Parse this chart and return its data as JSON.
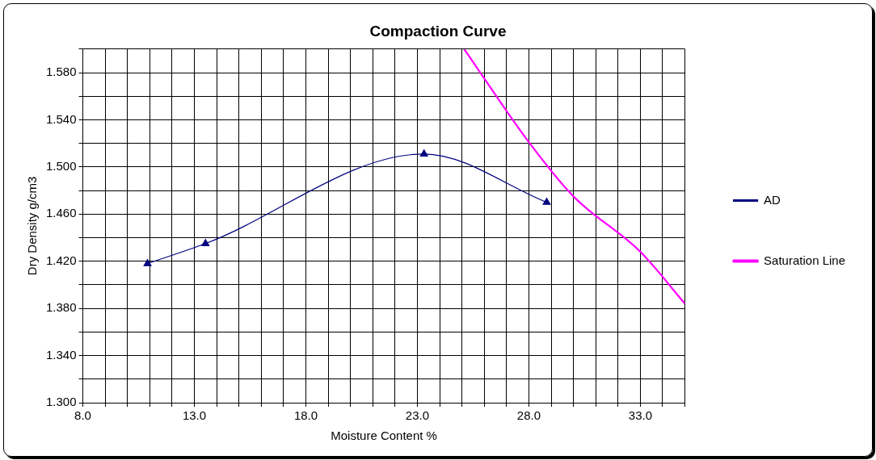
{
  "chart_data": {
    "type": "line",
    "title": "Compaction Curve",
    "xlabel": "Moisture Content %",
    "ylabel": "Dry Density g/cm3",
    "xlim": [
      8,
      35
    ],
    "ylim": [
      1.3,
      1.6
    ],
    "xticks": [
      {
        "value": 8,
        "label": "8.0"
      },
      {
        "value": 9,
        "label": null
      },
      {
        "value": 10,
        "label": null
      },
      {
        "value": 11,
        "label": null
      },
      {
        "value": 12,
        "label": null
      },
      {
        "value": 13,
        "label": "13.0"
      },
      {
        "value": 14,
        "label": null
      },
      {
        "value": 15,
        "label": null
      },
      {
        "value": 16,
        "label": null
      },
      {
        "value": 17,
        "label": null
      },
      {
        "value": 18,
        "label": "18.0"
      },
      {
        "value": 19,
        "label": null
      },
      {
        "value": 20,
        "label": null
      },
      {
        "value": 21,
        "label": null
      },
      {
        "value": 22,
        "label": null
      },
      {
        "value": 23,
        "label": "23.0"
      },
      {
        "value": 24,
        "label": null
      },
      {
        "value": 25,
        "label": null
      },
      {
        "value": 26,
        "label": null
      },
      {
        "value": 27,
        "label": null
      },
      {
        "value": 28,
        "label": "28.0"
      },
      {
        "value": 29,
        "label": null
      },
      {
        "value": 30,
        "label": null
      },
      {
        "value": 31,
        "label": null
      },
      {
        "value": 32,
        "label": null
      },
      {
        "value": 33,
        "label": "33.0"
      },
      {
        "value": 34,
        "label": null
      },
      {
        "value": 35,
        "label": null
      }
    ],
    "yticks": [
      {
        "value": 1.3,
        "label": "1.300"
      },
      {
        "value": 1.32,
        "label": null
      },
      {
        "value": 1.34,
        "label": "1.340"
      },
      {
        "value": 1.36,
        "label": null
      },
      {
        "value": 1.38,
        "label": "1.380"
      },
      {
        "value": 1.4,
        "label": null
      },
      {
        "value": 1.42,
        "label": "1.420"
      },
      {
        "value": 1.44,
        "label": null
      },
      {
        "value": 1.46,
        "label": "1.460"
      },
      {
        "value": 1.48,
        "label": null
      },
      {
        "value": 1.5,
        "label": "1.500"
      },
      {
        "value": 1.52,
        "label": null
      },
      {
        "value": 1.54,
        "label": "1.540"
      },
      {
        "value": 1.56,
        "label": null
      },
      {
        "value": 1.58,
        "label": "1.580"
      },
      {
        "value": 1.6,
        "label": null
      }
    ],
    "grid": true,
    "legend": "right",
    "series": [
      {
        "name": "AD",
        "color": "#000080",
        "marker": "triangle",
        "x": [
          10.9,
          13.5,
          23.3,
          28.8
        ],
        "values": [
          1.418,
          1.435,
          1.511,
          1.47
        ]
      },
      {
        "name": "Saturation Line",
        "color": "#ff00ff",
        "marker": "none",
        "x": [
          25.1,
          28,
          30,
          33,
          35
        ],
        "values": [
          1.6,
          1.521,
          1.475,
          1.428,
          1.384
        ]
      }
    ]
  }
}
